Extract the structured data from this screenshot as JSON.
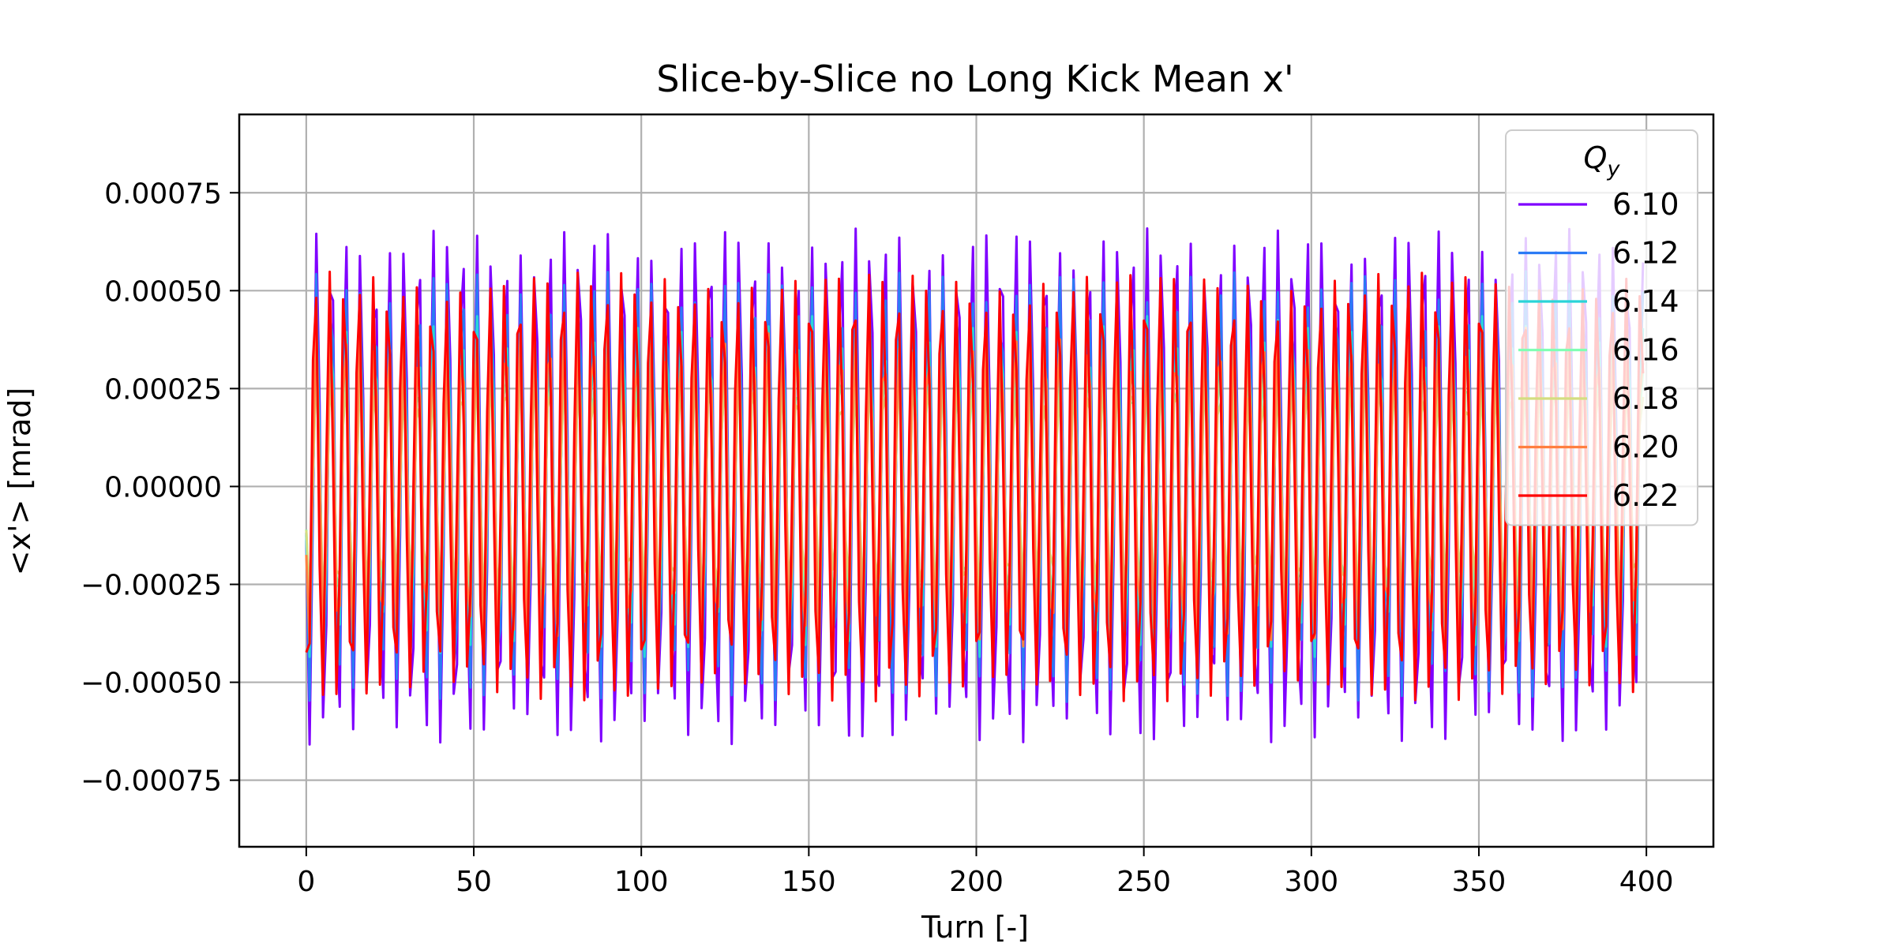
{
  "chart_data": {
    "type": "line",
    "title": "Slice-by-Slice no Long Kick Mean x'",
    "xlabel": "Turn [-]",
    "ylabel": "<x'> [mrad]",
    "xlim": [
      -20,
      420
    ],
    "ylim": [
      -0.00092,
      0.00095
    ],
    "xticks": [
      0,
      50,
      100,
      150,
      200,
      250,
      300,
      350,
      400
    ],
    "xtick_labels": [
      "0",
      "50",
      "100",
      "150",
      "200",
      "250",
      "300",
      "350",
      "400"
    ],
    "yticks": [
      -0.00075,
      -0.0005,
      -0.00025,
      0.0,
      0.00025,
      0.0005,
      0.00075
    ],
    "ytick_labels": [
      "−0.00075",
      "−0.00050",
      "−0.00025",
      "0.00000",
      "0.00025",
      "0.00050",
      "0.00075"
    ],
    "grid": true,
    "legend": {
      "title_base": "Q",
      "title_sub": "y",
      "placement": "top-right"
    },
    "x_range": [
      0,
      399
    ],
    "series": [
      {
        "name": "6.10",
        "color": "#7f00ff",
        "amplitude": 0.00066,
        "tune": 0.23,
        "beat": 0.024,
        "beat_depth": 0.12,
        "phase": 1.75
      },
      {
        "name": "6.12",
        "color": "#2c7bf5",
        "amplitude": 0.00055,
        "tune": 0.23,
        "beat": 0.022,
        "beat_depth": 0.15,
        "phase": 1.8
      },
      {
        "name": "6.14",
        "color": "#2ad4d8",
        "amplitude": 0.00044,
        "tune": 0.23,
        "beat": 0.02,
        "beat_depth": 0.18,
        "phase": 1.85
      },
      {
        "name": "6.16",
        "color": "#81ffb4",
        "amplitude": 0.00034,
        "tune": 0.23,
        "beat": 0.018,
        "beat_depth": 0.2,
        "phase": 1.9
      },
      {
        "name": "6.18",
        "color": "#d4dd80",
        "amplitude": 0.0003,
        "tune": 0.23,
        "beat": 0.016,
        "beat_depth": 0.2,
        "phase": 1.95
      },
      {
        "name": "6.20",
        "color": "#ff7f3f",
        "amplitude": 0.00042,
        "tune": 0.23,
        "beat": 0.014,
        "beat_depth": 0.16,
        "phase": 2.0
      },
      {
        "name": "6.22",
        "color": "#ff0000",
        "amplitude": 0.00055,
        "tune": 0.23,
        "beat": 0.012,
        "beat_depth": 0.1,
        "phase": 2.45
      }
    ]
  }
}
